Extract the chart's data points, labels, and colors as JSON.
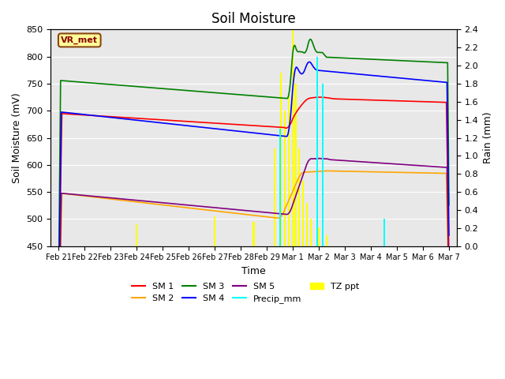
{
  "title": "Soil Moisture",
  "xlabel": "Time",
  "ylabel_left": "Soil Moisture (mV)",
  "ylabel_right": "Rain (mm)",
  "ylim_left": [
    450,
    850
  ],
  "ylim_right": [
    0.0,
    2.4
  ],
  "x_ticks": [
    "Feb 21",
    "Feb 22",
    "Feb 23",
    "Feb 24",
    "Feb 25",
    "Feb 26",
    "Feb 27",
    "Feb 28",
    "Feb 29",
    "Mar 1",
    "Mar 2",
    "Mar 3",
    "Mar 4",
    "Mar 5",
    "Mar 6",
    "Mar 7"
  ],
  "bg_color": "#e8e8e8",
  "annotation_text": "VR_met",
  "annotation_box_color": "#ffff99",
  "annotation_box_edge": "#8B4513",
  "annotation_text_color": "#8B0000"
}
